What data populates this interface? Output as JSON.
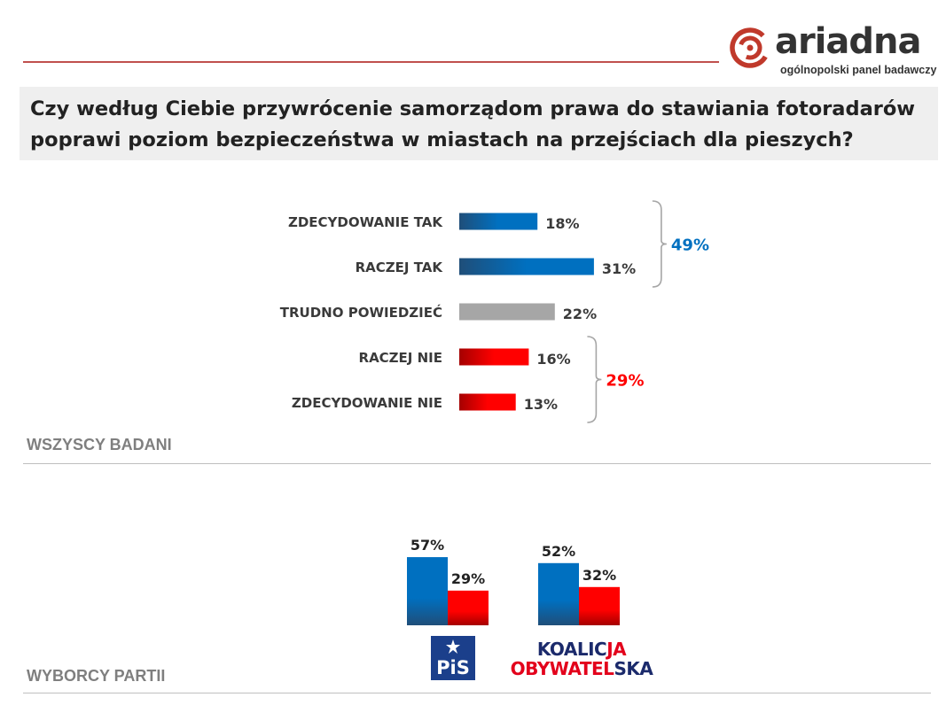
{
  "logo": {
    "name": "ariadna",
    "tagline": "ogólnopolski panel badawczy"
  },
  "question": "Czy według Ciebie przywrócenie samorządom prawa do stawiania fotoradarów poprawi poziom bezpieczeństwa w miastach na przejściach dla pieszych?",
  "colors": {
    "blue": "#0070c0",
    "blue_dark": "#1f4e79",
    "red": "#ff0000",
    "red_dark": "#a50000",
    "gray": "#a6a6a6"
  },
  "sections": {
    "all": "WSZYSCY BADANI",
    "voters": "WYBORCY PARTII"
  },
  "chart_data": [
    {
      "type": "bar",
      "orientation": "horizontal",
      "categories": [
        "ZDECYDOWANIE TAK",
        "RACZEJ TAK",
        "TRUDNO POWIEDZIEĆ",
        "RACZEJ NIE",
        "ZDECYDOWANIE NIE"
      ],
      "values": [
        18,
        31,
        22,
        16,
        13
      ],
      "value_labels": [
        "18%",
        "31%",
        "22%",
        "16%",
        "13%"
      ],
      "bar_colors": [
        "blue",
        "blue",
        "gray",
        "red",
        "red"
      ],
      "groups": [
        {
          "label": "49%",
          "color": "blue",
          "from": 0,
          "to": 1
        },
        {
          "label": "29%",
          "color": "red",
          "from": 3,
          "to": 4
        }
      ],
      "xlim": [
        0,
        100
      ]
    },
    {
      "type": "bar",
      "categories": [
        "PiS",
        "KOALICJA OBYWATELSKA"
      ],
      "series": [
        {
          "color": "blue",
          "values": [
            57,
            52
          ],
          "labels": [
            "57%",
            "52%"
          ]
        },
        {
          "color": "red",
          "values": [
            29,
            32
          ],
          "labels": [
            "29%",
            "32%"
          ]
        }
      ],
      "category_logos": [
        {
          "text": "PiS"
        },
        {
          "line1_a": "KOALIC",
          "line1_b": "JA",
          "line2_a": "OBYWATEL",
          "line2_b": "SKA"
        }
      ],
      "ylim": [
        0,
        100
      ]
    }
  ]
}
